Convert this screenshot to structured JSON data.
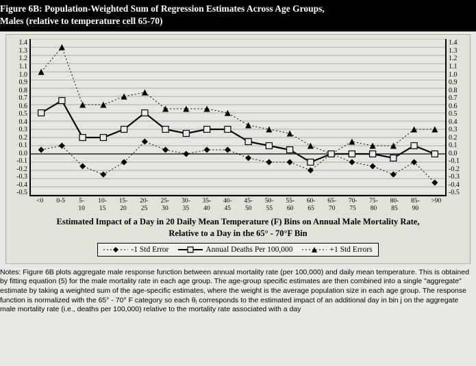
{
  "title_line1": "Figure 6B:  Population-Weighted Sum of Regression Estimates Across Age Groups,",
  "title_line2": "Males (relative to temperature cell 65-70)",
  "chart": {
    "type": "line",
    "ylim": [
      -0.5,
      1.4
    ],
    "yticks": [
      1.4,
      1.3,
      1.2,
      1.1,
      1.0,
      0.9,
      0.8,
      0.7,
      0.6,
      0.5,
      0.4,
      0.3,
      0.2,
      0.1,
      0.0,
      -0.1,
      -0.2,
      -0.3,
      -0.4,
      -0.5
    ],
    "x_categories": [
      {
        "top": "<0",
        "bot": ""
      },
      {
        "top": "0-5",
        "bot": ""
      },
      {
        "top": "5-",
        "bot": "10"
      },
      {
        "top": "10-",
        "bot": "15"
      },
      {
        "top": "15-",
        "bot": "20"
      },
      {
        "top": "20-",
        "bot": "25"
      },
      {
        "top": "25-",
        "bot": "30"
      },
      {
        "top": "30-",
        "bot": "35"
      },
      {
        "top": "35-",
        "bot": "40"
      },
      {
        "top": "40-",
        "bot": "45"
      },
      {
        "top": "45-",
        "bot": "50"
      },
      {
        "top": "50-",
        "bot": "55"
      },
      {
        "top": "55-",
        "bot": "60"
      },
      {
        "top": "60-",
        "bot": "65"
      },
      {
        "top": "65-",
        "bot": "70"
      },
      {
        "top": "70-",
        "bot": "75"
      },
      {
        "top": "75-",
        "bot": "80"
      },
      {
        "top": "80-",
        "bot": "85"
      },
      {
        "top": "85-",
        "bot": "90"
      },
      {
        "top": ">90",
        "bot": ""
      }
    ],
    "series": {
      "lower": {
        "label": "-1 Std Error",
        "marker": "diamond",
        "dash": "dot",
        "color": "#000000",
        "values": [
          0.05,
          0.1,
          -0.15,
          -0.25,
          -0.1,
          0.15,
          0.05,
          0.0,
          0.05,
          0.05,
          -0.05,
          -0.1,
          -0.1,
          -0.2,
          0.0,
          -0.1,
          -0.15,
          -0.25,
          -0.1,
          -0.35
        ]
      },
      "center": {
        "label": "Annual Deaths Per 100,000",
        "marker": "square",
        "dash": "solid",
        "color": "#000000",
        "values": [
          0.5,
          0.65,
          0.2,
          0.2,
          0.3,
          0.5,
          0.3,
          0.25,
          0.3,
          0.3,
          0.15,
          0.1,
          0.05,
          -0.1,
          0.0,
          0.0,
          0.0,
          -0.05,
          0.1,
          0.0
        ]
      },
      "upper": {
        "label": "+1 Std Errors",
        "marker": "triangle",
        "dash": "dot",
        "color": "#000000",
        "values": [
          1.0,
          1.3,
          0.6,
          0.6,
          0.7,
          0.75,
          0.55,
          0.55,
          0.55,
          0.5,
          0.35,
          0.3,
          0.25,
          0.1,
          0.0,
          0.15,
          0.1,
          0.1,
          0.3,
          0.3
        ]
      }
    },
    "background_color": "#e4e7df",
    "grid_color": "#6a706a",
    "axis_color": "#000000",
    "line_width_center": 2.2,
    "line_width_err": 1,
    "marker_size": 4.5,
    "ytick_fontsize": 10,
    "xtick_fontsize": 9.5
  },
  "x_title_line1": "Estimated Impact of a Day in 20 Daily Mean Temperature (F) Bins on Annual Male Mortality Rate,",
  "x_title_line2": "Relative to a Day in the 65° - 70°F Bin",
  "legend_items": [
    {
      "key": "lower",
      "label": "-1 Std Error"
    },
    {
      "key": "center",
      "label": "Annual Deaths Per 100,000"
    },
    {
      "key": "upper",
      "label": "+1 Std Errors"
    }
  ],
  "notes": "Notes: Figure 6B plots aggregate male response function between annual mortality rate (per 100,000) and daily mean temperature.  This is obtained by fitting equation (5) for the male mortality rate in each age group.  The age-group specific estimates are then combined into a single \"aggregate\" estimate by taking a weighted sum of the age-specific estimates, where the weight is the average population size in each age group.  The response function is normalized with the 65° - 70° F category so each θⱼ corresponds to the estimated impact of an additional day in bin j on the aggregate male mortality rate (i.e., deaths per 100,000) relative to the mortality rate associated with a day"
}
